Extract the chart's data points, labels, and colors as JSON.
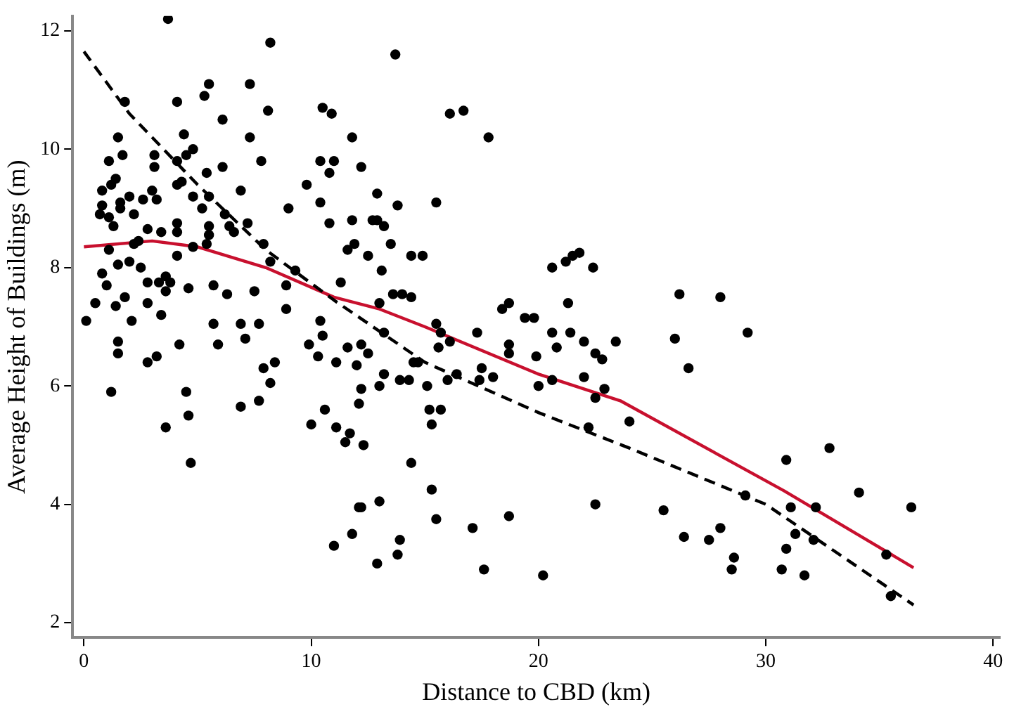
{
  "chart_data": {
    "type": "scatter",
    "xlabel": "Distance to CBD (km)",
    "ylabel": "Average Height of Buildings (m)",
    "xlim": [
      -0.5,
      40.3
    ],
    "xticks": [
      0,
      10,
      20,
      30,
      40
    ],
    "ylim": [
      1.75,
      12.25
    ],
    "yticks": [
      2,
      4,
      6,
      8,
      10,
      12
    ],
    "grid": false,
    "marker": "circle",
    "series": [
      {
        "color": "#000000",
        "x": [
          3.7,
          8.2,
          5.5,
          5.3,
          7.3,
          4.1,
          1.8,
          6.1,
          8.1,
          4.4,
          1.5,
          7.3,
          4.8,
          4.5,
          3.1,
          1.7,
          1.1,
          4.1,
          3.1,
          6.1,
          7.8,
          5.4,
          1.4,
          1.2,
          0.8,
          4.3,
          4.1,
          3.0,
          6.9,
          2.0,
          2.6,
          3.2,
          4.8,
          5.5,
          1.6,
          0.8,
          1.6,
          5.2,
          0.7,
          1.1,
          2.2,
          6.2,
          1.3,
          2.8,
          3.4,
          4.1,
          4.1,
          5.5,
          6.4,
          6.6,
          7.2,
          5.5,
          1.1,
          2.2,
          2.4,
          4.1,
          4.8,
          5.4,
          7.9,
          8.2,
          1.5,
          2.0,
          2.5,
          0.8,
          1.0,
          1.8,
          2.8,
          3.3,
          3.6,
          3.8,
          3.6,
          4.6,
          5.7,
          6.3,
          7.5,
          8.9,
          9.3,
          0.5,
          1.4,
          2.8,
          3.4,
          8.9,
          0.1,
          2.1,
          5.7,
          6.9,
          7.7,
          10.4,
          11.3,
          10.4,
          9.8,
          10.8,
          10.5,
          10.9,
          11.8,
          10.4,
          11.0,
          10.8,
          11.8,
          11.6,
          11.9,
          9.0,
          1.5,
          1.5,
          2.8,
          3.2,
          4.2,
          5.9,
          7.1,
          9.9,
          10.3,
          10.5,
          11.1,
          11.6,
          12.0,
          7.9,
          8.4,
          8.2,
          1.2,
          4.5,
          6.9,
          7.7,
          4.6,
          3.6,
          10.0,
          10.6,
          11.1,
          11.7,
          11.5,
          4.7,
          11.8,
          11.0,
          12.1,
          13.7,
          16.1,
          16.7,
          17.8,
          12.2,
          12.9,
          13.8,
          15.5,
          12.7,
          12.9,
          13.2,
          13.5,
          12.5,
          13.1,
          14.4,
          14.9,
          13.6,
          14.0,
          14.4,
          13.0,
          20.6,
          21.2,
          21.5,
          21.8,
          22.4,
          21.3,
          18.7,
          18.4,
          19.4,
          19.8,
          15.5,
          13.2,
          12.2,
          12.5,
          15.7,
          17.3,
          15.6,
          16.1,
          14.5,
          14.7,
          13.2,
          13.0,
          13.9,
          14.3,
          15.1,
          16.0,
          16.4,
          17.5,
          17.4,
          18.0,
          12.2,
          12.1,
          15.2,
          15.7,
          15.3,
          18.7,
          18.7,
          19.9,
          20.6,
          21.4,
          20.8,
          22.0,
          22.5,
          22.8,
          23.4,
          20.0,
          20.6,
          22.0,
          22.5,
          22.9,
          24.0,
          22.2,
          12.3,
          14.4,
          15.3,
          12.2,
          13.0,
          15.5,
          18.7,
          22.5,
          13.9,
          13.8,
          12.9,
          17.1,
          17.6,
          20.2,
          26.2,
          28.0,
          26.0,
          29.2,
          26.6,
          30.9,
          32.8,
          34.1,
          36.4,
          29.1,
          31.1,
          32.2,
          25.5,
          26.4,
          27.5,
          28.0,
          28.6,
          28.5,
          31.3,
          30.9,
          32.1,
          30.7,
          31.7,
          35.3,
          35.5
        ],
        "values": [
          12.2,
          11.8,
          11.1,
          10.9,
          11.1,
          10.8,
          10.8,
          10.5,
          10.65,
          10.25,
          10.2,
          10.2,
          10.0,
          9.9,
          9.9,
          9.9,
          9.8,
          9.8,
          9.7,
          9.7,
          9.8,
          9.6,
          9.5,
          9.4,
          9.3,
          9.45,
          9.4,
          9.3,
          9.3,
          9.2,
          9.15,
          9.15,
          9.2,
          9.2,
          9.1,
          9.05,
          9.0,
          9.0,
          8.9,
          8.85,
          8.9,
          8.9,
          8.7,
          8.65,
          8.6,
          8.75,
          8.6,
          8.7,
          8.7,
          8.6,
          8.75,
          8.55,
          8.3,
          8.4,
          8.45,
          8.2,
          8.35,
          8.4,
          8.4,
          8.1,
          8.05,
          8.1,
          8.0,
          7.9,
          7.7,
          7.5,
          7.75,
          7.75,
          7.85,
          7.75,
          7.6,
          7.65,
          7.7,
          7.55,
          7.6,
          7.7,
          7.95,
          7.4,
          7.35,
          7.4,
          7.2,
          7.3,
          7.1,
          7.1,
          7.05,
          7.05,
          7.05,
          7.1,
          7.75,
          9.1,
          9.4,
          8.75,
          10.7,
          10.6,
          10.2,
          9.8,
          9.8,
          9.6,
          8.8,
          8.3,
          8.4,
          9.0,
          6.75,
          6.55,
          6.4,
          6.5,
          6.7,
          6.7,
          6.8,
          6.7,
          6.5,
          6.85,
          6.4,
          6.65,
          6.35,
          6.3,
          6.4,
          6.05,
          5.9,
          5.9,
          5.65,
          5.75,
          5.5,
          5.3,
          5.35,
          5.6,
          5.3,
          5.2,
          5.05,
          4.7,
          3.5,
          3.3,
          3.95,
          11.6,
          10.6,
          10.65,
          10.2,
          9.7,
          9.25,
          9.05,
          9.1,
          8.8,
          8.8,
          8.7,
          8.4,
          8.2,
          7.95,
          8.2,
          8.2,
          7.55,
          7.55,
          7.5,
          7.4,
          8.0,
          8.1,
          8.2,
          8.25,
          8.0,
          7.4,
          7.4,
          7.3,
          7.15,
          7.15,
          7.05,
          6.9,
          6.7,
          6.55,
          6.9,
          6.9,
          6.65,
          6.75,
          6.4,
          6.4,
          6.2,
          6.0,
          6.1,
          6.1,
          6.0,
          6.1,
          6.2,
          6.3,
          6.1,
          6.15,
          5.95,
          5.7,
          5.6,
          5.6,
          5.35,
          6.7,
          6.55,
          6.5,
          6.9,
          6.9,
          6.65,
          6.75,
          6.55,
          6.45,
          6.75,
          6.0,
          6.1,
          6.15,
          5.8,
          5.95,
          5.4,
          5.3,
          5.0,
          4.7,
          4.25,
          3.95,
          4.05,
          3.75,
          3.8,
          4.0,
          3.4,
          3.15,
          3.0,
          3.6,
          2.9,
          2.8,
          7.55,
          7.5,
          6.8,
          6.9,
          6.3,
          4.75,
          4.95,
          4.2,
          3.95,
          4.15,
          3.95,
          3.95,
          3.9,
          3.45,
          3.4,
          3.6,
          3.1,
          2.9,
          3.5,
          3.25,
          3.4,
          2.9,
          2.8,
          3.15,
          2.45
        ]
      },
      {
        "type": "line",
        "color": "#000000",
        "line_style": "dashed",
        "marker": "none",
        "x": [
          0,
          2,
          5,
          8,
          11,
          15,
          20,
          24,
          30,
          36.5
        ],
        "values": [
          11.65,
          10.6,
          9.4,
          8.3,
          7.45,
          6.4,
          5.55,
          4.95,
          4.0,
          2.3
        ]
      },
      {
        "type": "line",
        "color": "#c8102e",
        "line_style": "solid",
        "marker": "none",
        "x": [
          0,
          3,
          5,
          8,
          11,
          13,
          15,
          20,
          23.6,
          30.8,
          36.5
        ],
        "values": [
          8.35,
          8.45,
          8.35,
          8.0,
          7.5,
          7.3,
          7.0,
          6.2,
          5.75,
          4.23,
          2.93
        ]
      }
    ]
  }
}
